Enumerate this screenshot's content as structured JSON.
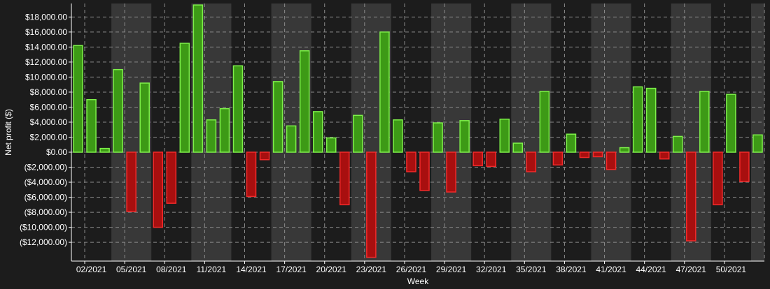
{
  "chart_data": {
    "type": "bar",
    "xlabel": "Week",
    "ylabel": "Net profit ($)",
    "ylim": [
      -14500,
      19800
    ],
    "y_ticks": [
      -12000,
      -10000,
      -8000,
      -6000,
      -4000,
      -2000,
      0,
      2000,
      4000,
      6000,
      8000,
      10000,
      12000,
      14000,
      16000,
      18000
    ],
    "y_tick_labels": [
      "($12,000.00)",
      "($10,000.00)",
      "($8,000.00)",
      "($6,000.00)",
      "($4,000.00)",
      "($2,000.00)",
      "$0.00",
      "$2,000.00",
      "$4,000.00",
      "$6,000.00",
      "$8,000.00",
      "$10,000.00",
      "$12,000.00",
      "$14,000.00",
      "$16,000.00",
      "$18,000.00"
    ],
    "x_tick_labels": [
      "02/2021",
      "05/2021",
      "08/2021",
      "11/2021",
      "14/2021",
      "17/2021",
      "20/2021",
      "23/2021",
      "26/2021",
      "29/2021",
      "32/2021",
      "35/2021",
      "38/2021",
      "41/2021",
      "44/2021",
      "47/2021",
      "50/2021"
    ],
    "x_tick_weeks": [
      2,
      5,
      8,
      11,
      14,
      17,
      20,
      23,
      26,
      29,
      32,
      35,
      38,
      41,
      44,
      47,
      50
    ],
    "weeks": [
      1,
      2,
      3,
      4,
      5,
      6,
      7,
      8,
      9,
      10,
      11,
      12,
      13,
      14,
      15,
      16,
      17,
      18,
      19,
      20,
      21,
      22,
      23,
      24,
      25,
      26,
      27,
      28,
      29,
      30,
      31,
      32,
      33,
      34,
      35,
      36,
      37,
      38,
      39,
      40,
      41,
      42,
      43,
      44,
      45,
      46,
      47,
      48,
      49,
      50,
      51,
      52
    ],
    "values": [
      14200,
      7000,
      500,
      11000,
      -7900,
      9200,
      -10000,
      -6800,
      14500,
      19600,
      4300,
      5800,
      11500,
      -5900,
      -1000,
      9400,
      3500,
      13500,
      5400,
      1900,
      -7000,
      4900,
      -14000,
      16000,
      4300,
      -2600,
      -5100,
      3900,
      -5300,
      4200,
      -1800,
      -1900,
      4400,
      1200,
      -2600,
      8100,
      -1700,
      2400,
      -700,
      -600,
      -2300,
      600,
      8700,
      8500,
      -900,
      2100,
      -11800,
      8100,
      -7000,
      7700,
      -3900,
      2300
    ],
    "shaded_band_weeks": [
      [
        4,
        6
      ],
      [
        10,
        12
      ],
      [
        16,
        18
      ],
      [
        22,
        24
      ],
      [
        28,
        30
      ],
      [
        34,
        36
      ],
      [
        40,
        42
      ],
      [
        46,
        48
      ],
      [
        52,
        52
      ]
    ],
    "grid": true,
    "legend": "none",
    "colors": {
      "background": "#1c1c1c",
      "band": "#383838",
      "grid": "#8a8a8a",
      "positive_fill": "#3d9a16",
      "positive_stroke": "#7ef04a",
      "negative_fill": "#a80f0f",
      "negative_stroke": "#f22a2a",
      "text": "#ffffff"
    }
  }
}
